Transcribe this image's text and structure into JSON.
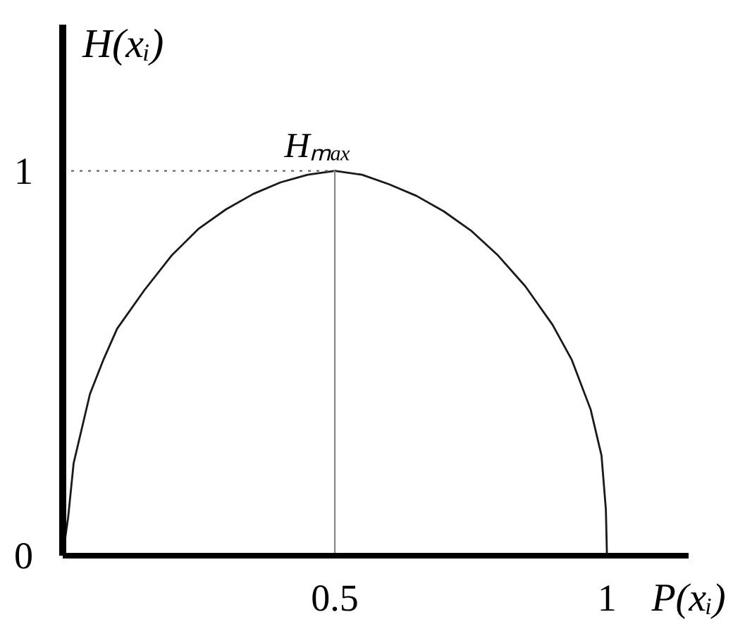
{
  "chart_data": {
    "type": "line",
    "xlabel": "P(xᵢ)",
    "ylabel": "H(xᵢ)",
    "xlim": [
      0,
      1.15
    ],
    "ylim": [
      0,
      1.38
    ],
    "xticks": [
      0.5,
      1
    ],
    "yticks": [
      0,
      1
    ],
    "grid": false,
    "series": [
      {
        "color": "#1a1a1a",
        "x": [
          0,
          0.01,
          0.02,
          0.05,
          0.075,
          0.1,
          0.15,
          0.2,
          0.25,
          0.3,
          0.35,
          0.4,
          0.45,
          0.5,
          0.55,
          0.6,
          0.65,
          0.7,
          0.75,
          0.8,
          0.85,
          0.9,
          0.935,
          0.97,
          0.99,
          0.998,
          1
        ],
        "values": [
          0,
          0.1,
          0.24,
          0.42,
          0.51,
          0.59,
          0.69,
          0.78,
          0.85,
          0.9,
          0.94,
          0.97,
          0.99,
          1,
          0.99,
          0.965,
          0.935,
          0.895,
          0.845,
          0.78,
          0.7,
          0.6,
          0.51,
          0.38,
          0.26,
          0.12,
          0
        ]
      },
      {
        "color": "#666666",
        "line_style": "dotted",
        "x": [
          0,
          0.5
        ],
        "values": [
          1,
          1
        ]
      },
      {
        "color": "#888888",
        "x": [
          0.5,
          0.5
        ],
        "values": [
          1,
          0
        ]
      }
    ],
    "annotations": [
      {
        "text": "Hₘₐₓ",
        "x": 0.5,
        "y": 1
      }
    ]
  }
}
